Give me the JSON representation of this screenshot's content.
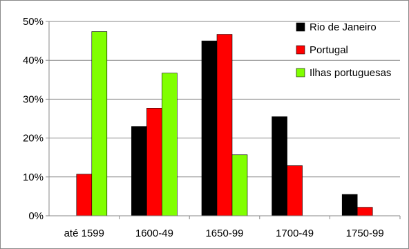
{
  "chart_data": {
    "type": "bar",
    "categories": [
      "até 1599",
      "1600-49",
      "1650-99",
      "1700-49",
      "1750-99"
    ],
    "series": [
      {
        "name": "Rio de Janeiro",
        "color": "#000000",
        "values": [
          0,
          23,
          45,
          25.5,
          5.5
        ]
      },
      {
        "name": "Portugal",
        "color": "#ff0000",
        "values": [
          10.7,
          27.7,
          46.7,
          12.9,
          2.2
        ]
      },
      {
        "name": "Ilhas portuguesas",
        "color": "#80ff00",
        "values": [
          47.4,
          36.7,
          15.7,
          0,
          0
        ]
      }
    ],
    "yticks": [
      "0%",
      "10%",
      "20%",
      "30%",
      "40%",
      "50%"
    ],
    "ylim": [
      0,
      50
    ],
    "grid": true,
    "legend_position": "top-right"
  }
}
